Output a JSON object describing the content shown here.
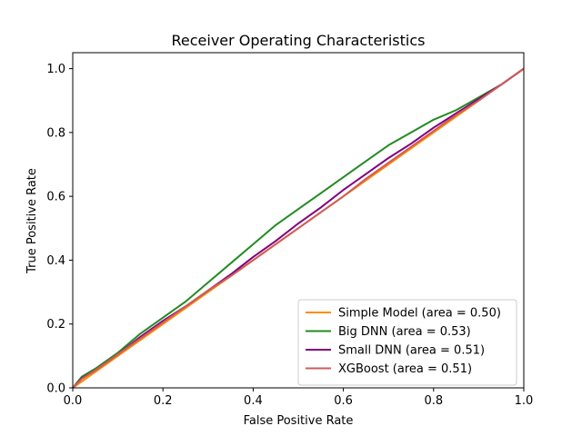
{
  "chart_data": {
    "type": "line",
    "title": "Receiver Operating Characteristics",
    "xlabel": "False Positive Rate",
    "ylabel": "True Positive Rate",
    "xlim": [
      0.0,
      1.0
    ],
    "ylim": [
      0.0,
      1.05
    ],
    "xticks": [
      0.0,
      0.2,
      0.4,
      0.6,
      0.8,
      1.0
    ],
    "yticks": [
      0.0,
      0.2,
      0.4,
      0.6,
      0.8,
      1.0
    ],
    "xtick_labels": [
      "0.0",
      "0.2",
      "0.4",
      "0.6",
      "0.8",
      "1.0"
    ],
    "ytick_labels": [
      "0.0",
      "0.2",
      "0.4",
      "0.6",
      "0.8",
      "1.0"
    ],
    "grid": false,
    "legend_position": "lower-right",
    "reference_line": {
      "x": [
        0,
        1
      ],
      "y": [
        0,
        1
      ],
      "style": "dashed",
      "color": "#000080"
    },
    "series": [
      {
        "name": "Simple Model (area = 0.50)",
        "color": "#ff8c00",
        "x": [
          0,
          1
        ],
        "y": [
          0,
          1
        ]
      },
      {
        "name": "Big DNN (area = 0.53)",
        "color": "#228b22",
        "x": [
          0,
          0.02,
          0.05,
          0.1,
          0.15,
          0.2,
          0.25,
          0.3,
          0.35,
          0.4,
          0.45,
          0.5,
          0.55,
          0.6,
          0.65,
          0.7,
          0.75,
          0.8,
          0.85,
          0.9,
          0.95,
          1.0
        ],
        "y": [
          0,
          0.035,
          0.06,
          0.11,
          0.17,
          0.22,
          0.27,
          0.33,
          0.39,
          0.45,
          0.51,
          0.56,
          0.61,
          0.66,
          0.71,
          0.76,
          0.8,
          0.84,
          0.87,
          0.91,
          0.95,
          1.0
        ]
      },
      {
        "name": "Small DNN (area = 0.51)",
        "color": "#800080",
        "x": [
          0,
          0.02,
          0.05,
          0.1,
          0.15,
          0.2,
          0.25,
          0.3,
          0.35,
          0.4,
          0.45,
          0.5,
          0.55,
          0.6,
          0.65,
          0.7,
          0.75,
          0.8,
          0.85,
          0.9,
          0.95,
          1.0
        ],
        "y": [
          0,
          0.03,
          0.055,
          0.105,
          0.16,
          0.21,
          0.255,
          0.305,
          0.355,
          0.41,
          0.46,
          0.515,
          0.565,
          0.62,
          0.67,
          0.72,
          0.765,
          0.815,
          0.86,
          0.905,
          0.95,
          1.0
        ]
      },
      {
        "name": "XGBoost (area = 0.51)",
        "color": "#cd5c5c",
        "x": [
          0,
          0.02,
          0.05,
          0.1,
          0.15,
          0.2,
          0.25,
          0.3,
          0.35,
          0.4,
          0.45,
          0.5,
          0.55,
          0.6,
          0.65,
          0.7,
          0.75,
          0.8,
          0.85,
          0.9,
          0.95,
          1.0
        ],
        "y": [
          0,
          0.028,
          0.055,
          0.105,
          0.155,
          0.205,
          0.255,
          0.305,
          0.35,
          0.4,
          0.45,
          0.5,
          0.55,
          0.6,
          0.655,
          0.705,
          0.755,
          0.805,
          0.855,
          0.9,
          0.95,
          1.0
        ]
      }
    ]
  }
}
